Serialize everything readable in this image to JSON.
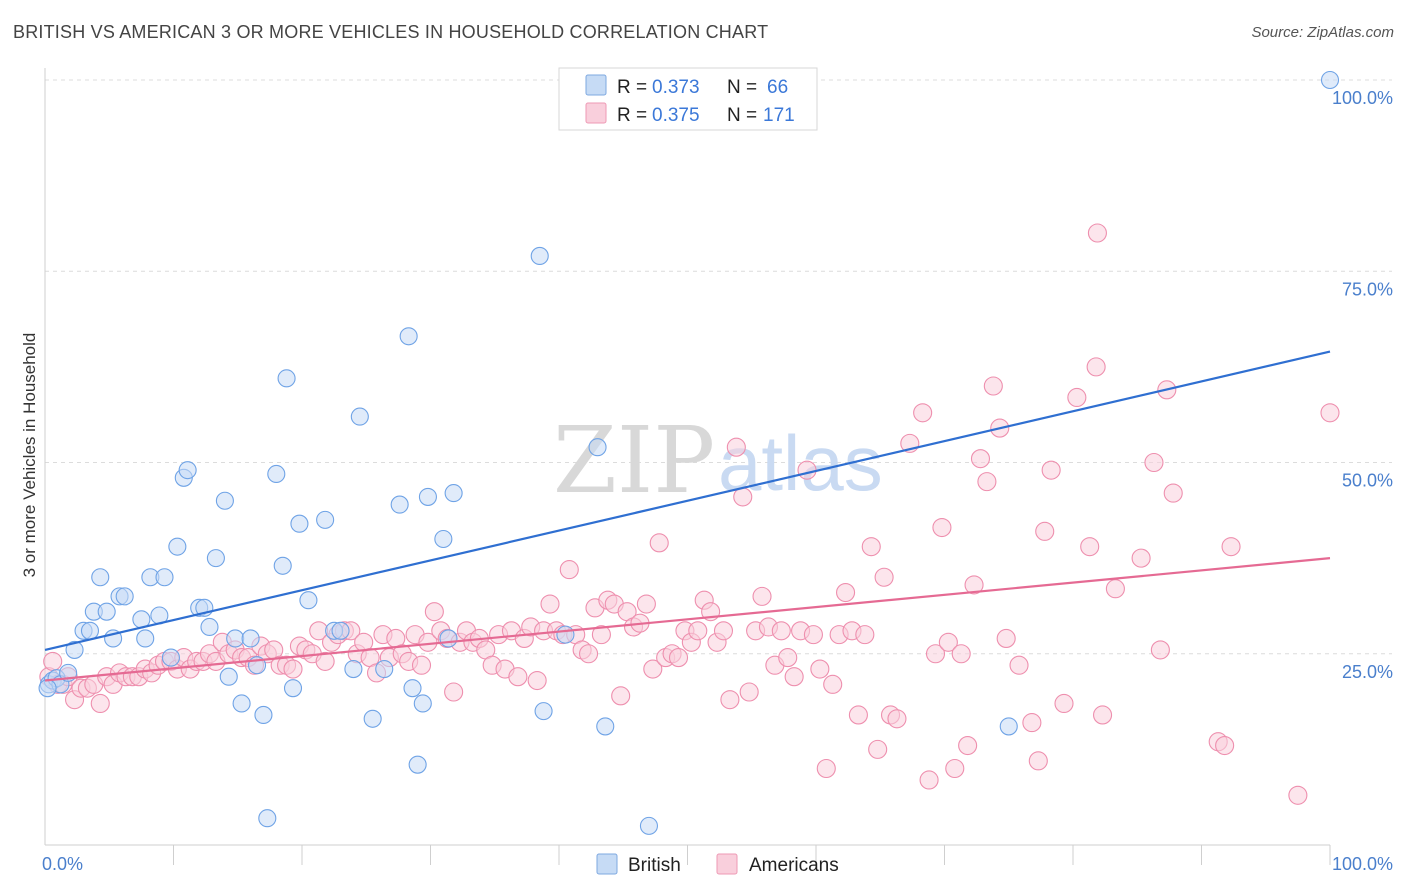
{
  "title": "BRITISH VS AMERICAN 3 OR MORE VEHICLES IN HOUSEHOLD CORRELATION CHART",
  "source": "Source: ZipAtlas.com",
  "watermark": {
    "zip": "ZIP",
    "atlas": "atlas"
  },
  "legend": {
    "rows": [
      {
        "r_label": "R = ",
        "r_value": "0.373",
        "n_label": "N = ",
        "n_value": "66",
        "color": "#aecbf0"
      },
      {
        "r_label": "R = ",
        "r_value": "0.375",
        "n_label": "N = ",
        "n_value": "171",
        "color": "#f7b8cb"
      }
    ]
  },
  "bottom_legend": [
    "British",
    "Americans"
  ],
  "chart_data": {
    "type": "scatter",
    "title": "BRITISH VS AMERICAN 3 OR MORE VEHICLES IN HOUSEHOLD CORRELATION CHART",
    "xlabel": "",
    "ylabel": "3 or more Vehicles in Household",
    "xlim": [
      0,
      100
    ],
    "ylim": [
      0,
      100
    ],
    "x_tick_labels": [
      "0.0%",
      "100.0%"
    ],
    "y_tick_labels": [
      "25.0%",
      "50.0%",
      "75.0%",
      "100.0%"
    ],
    "y_ticks": [
      25,
      50,
      75,
      100
    ],
    "grid": true,
    "legend_position": "top-center",
    "colors": {
      "british": "#6fa3e6",
      "british_fill": "#c6dbf5",
      "british_line": "#2f6fd1",
      "americans": "#ee8fae",
      "americans_fill": "#f9cfdc",
      "americans_line": "#e56a93"
    },
    "series": [
      {
        "name": "British",
        "R": 0.373,
        "N": 66,
        "trend": [
          [
            0,
            25.5
          ],
          [
            100,
            64.5
          ]
        ],
        "points": [
          [
            0.3,
            21
          ],
          [
            0.6,
            21.5
          ],
          [
            0.9,
            21.8
          ],
          [
            1.2,
            21
          ],
          [
            1.8,
            22.5
          ],
          [
            2.3,
            25.5
          ],
          [
            3,
            28
          ],
          [
            3.5,
            28
          ],
          [
            3.8,
            30.5
          ],
          [
            4.3,
            35
          ],
          [
            4.8,
            30.5
          ],
          [
            5.3,
            27
          ],
          [
            5.8,
            32.5
          ],
          [
            6.2,
            32.5
          ],
          [
            7.5,
            29.5
          ],
          [
            7.8,
            27
          ],
          [
            8.2,
            35
          ],
          [
            8.9,
            30
          ],
          [
            9.3,
            35
          ],
          [
            9.8,
            24.5
          ],
          [
            10.3,
            39
          ],
          [
            10.8,
            48
          ],
          [
            11.1,
            49
          ],
          [
            12,
            31
          ],
          [
            12.4,
            31
          ],
          [
            12.8,
            28.5
          ],
          [
            13.3,
            37.5
          ],
          [
            14,
            45
          ],
          [
            14.3,
            22
          ],
          [
            14.8,
            27
          ],
          [
            15.3,
            18.5
          ],
          [
            16,
            27
          ],
          [
            16.5,
            23.5
          ],
          [
            17,
            17
          ],
          [
            17.3,
            3.5
          ],
          [
            18,
            48.5
          ],
          [
            18.5,
            36.5
          ],
          [
            18.8,
            61
          ],
          [
            19.3,
            20.5
          ],
          [
            19.8,
            42
          ],
          [
            20.5,
            32
          ],
          [
            21.8,
            42.5
          ],
          [
            22.5,
            28
          ],
          [
            23,
            28
          ],
          [
            24,
            23
          ],
          [
            24.5,
            56
          ],
          [
            25.5,
            16.5
          ],
          [
            26.4,
            23
          ],
          [
            27.6,
            44.5
          ],
          [
            28.3,
            66.5
          ],
          [
            28.6,
            20.5
          ],
          [
            29,
            10.5
          ],
          [
            29.4,
            18.5
          ],
          [
            29.8,
            45.5
          ],
          [
            31,
            40
          ],
          [
            31.4,
            27
          ],
          [
            31.8,
            46
          ],
          [
            38.5,
            77
          ],
          [
            38.8,
            17.5
          ],
          [
            40.5,
            27.5
          ],
          [
            43,
            52
          ],
          [
            43.6,
            15.5
          ],
          [
            47,
            2.5
          ],
          [
            75,
            15.5
          ],
          [
            100,
            100
          ],
          [
            0.2,
            20.5
          ]
        ]
      },
      {
        "name": "Americans",
        "R": 0.375,
        "N": 171,
        "trend": [
          [
            0,
            21.5
          ],
          [
            100,
            37.5
          ]
        ],
        "points": [
          [
            0.3,
            22
          ],
          [
            0.6,
            24
          ],
          [
            1,
            21
          ],
          [
            1.4,
            21
          ],
          [
            1.8,
            22
          ],
          [
            2.3,
            19
          ],
          [
            2.8,
            20.5
          ],
          [
            3.3,
            20.5
          ],
          [
            3.8,
            21
          ],
          [
            4.3,
            18.5
          ],
          [
            4.8,
            22
          ],
          [
            5.3,
            21
          ],
          [
            5.8,
            22.5
          ],
          [
            6.3,
            22
          ],
          [
            6.8,
            22
          ],
          [
            7.3,
            22
          ],
          [
            7.8,
            23
          ],
          [
            8.3,
            22.5
          ],
          [
            8.8,
            23.5
          ],
          [
            9.3,
            24
          ],
          [
            9.8,
            24
          ],
          [
            10.3,
            23
          ],
          [
            10.8,
            24.5
          ],
          [
            11.3,
            23
          ],
          [
            11.8,
            24
          ],
          [
            12.3,
            24
          ],
          [
            12.8,
            25
          ],
          [
            13.3,
            24
          ],
          [
            13.8,
            26.5
          ],
          [
            14.3,
            25
          ],
          [
            14.8,
            25.5
          ],
          [
            15.3,
            24.5
          ],
          [
            15.8,
            24.5
          ],
          [
            16.3,
            23.5
          ],
          [
            16.8,
            26
          ],
          [
            17.3,
            25
          ],
          [
            17.8,
            25.5
          ],
          [
            18.3,
            23.5
          ],
          [
            18.8,
            23.5
          ],
          [
            19.3,
            23
          ],
          [
            19.8,
            26
          ],
          [
            20.3,
            25.5
          ],
          [
            20.8,
            25
          ],
          [
            21.3,
            28
          ],
          [
            21.8,
            24
          ],
          [
            22.3,
            26.5
          ],
          [
            22.8,
            27.5
          ],
          [
            23.3,
            28
          ],
          [
            23.8,
            28
          ],
          [
            24.3,
            25
          ],
          [
            24.8,
            26.5
          ],
          [
            25.3,
            24.5
          ],
          [
            25.8,
            22.5
          ],
          [
            26.3,
            27.5
          ],
          [
            26.8,
            24.5
          ],
          [
            27.3,
            27
          ],
          [
            27.8,
            25
          ],
          [
            28.3,
            24
          ],
          [
            28.8,
            27.5
          ],
          [
            29.3,
            23.5
          ],
          [
            29.8,
            26.5
          ],
          [
            30.3,
            30.5
          ],
          [
            30.8,
            28
          ],
          [
            31.3,
            27
          ],
          [
            31.8,
            20
          ],
          [
            32.3,
            26.5
          ],
          [
            32.8,
            28
          ],
          [
            33.3,
            26.5
          ],
          [
            33.8,
            27
          ],
          [
            34.3,
            25.5
          ],
          [
            34.8,
            23.5
          ],
          [
            35.3,
            27.5
          ],
          [
            35.8,
            23
          ],
          [
            36.3,
            28
          ],
          [
            36.8,
            22
          ],
          [
            37.3,
            27
          ],
          [
            37.8,
            28.5
          ],
          [
            38.3,
            21.5
          ],
          [
            38.8,
            28
          ],
          [
            39.3,
            31.5
          ],
          [
            39.8,
            28
          ],
          [
            40.3,
            27.5
          ],
          [
            40.8,
            36
          ],
          [
            41.3,
            27.5
          ],
          [
            41.8,
            25.5
          ],
          [
            42.3,
            25
          ],
          [
            42.8,
            31
          ],
          [
            43.3,
            27.5
          ],
          [
            43.8,
            32
          ],
          [
            44.3,
            31.5
          ],
          [
            44.8,
            19.5
          ],
          [
            45.3,
            30.5
          ],
          [
            45.8,
            28.5
          ],
          [
            46.3,
            29
          ],
          [
            46.8,
            31.5
          ],
          [
            47.3,
            23
          ],
          [
            47.8,
            39.5
          ],
          [
            48.3,
            24.5
          ],
          [
            48.8,
            25
          ],
          [
            49.3,
            24.5
          ],
          [
            49.8,
            28
          ],
          [
            50.3,
            26.5
          ],
          [
            50.8,
            28
          ],
          [
            51.3,
            32
          ],
          [
            51.8,
            30.5
          ],
          [
            52.3,
            26.5
          ],
          [
            52.8,
            28
          ],
          [
            53.3,
            19
          ],
          [
            53.8,
            52
          ],
          [
            54.3,
            45.5
          ],
          [
            54.8,
            20
          ],
          [
            55.3,
            28
          ],
          [
            55.8,
            32.5
          ],
          [
            56.3,
            28.5
          ],
          [
            56.8,
            23.5
          ],
          [
            57.3,
            28
          ],
          [
            57.8,
            24.5
          ],
          [
            58.3,
            22
          ],
          [
            58.8,
            28
          ],
          [
            59.3,
            49
          ],
          [
            59.8,
            27.5
          ],
          [
            60.3,
            23
          ],
          [
            60.8,
            10
          ],
          [
            61.3,
            21
          ],
          [
            61.8,
            27.5
          ],
          [
            62.3,
            33
          ],
          [
            62.8,
            28
          ],
          [
            63.3,
            17
          ],
          [
            63.8,
            27.5
          ],
          [
            64.3,
            39
          ],
          [
            64.8,
            12.5
          ],
          [
            65.3,
            35
          ],
          [
            65.8,
            17
          ],
          [
            66.3,
            16.5
          ],
          [
            67.3,
            52.5
          ],
          [
            68.3,
            56.5
          ],
          [
            68.8,
            8.5
          ],
          [
            69.3,
            25
          ],
          [
            69.8,
            41.5
          ],
          [
            70.3,
            26.5
          ],
          [
            70.8,
            10
          ],
          [
            71.3,
            25
          ],
          [
            71.8,
            13
          ],
          [
            72.3,
            34
          ],
          [
            72.8,
            50.5
          ],
          [
            73.3,
            47.5
          ],
          [
            73.8,
            60
          ],
          [
            74.3,
            54.5
          ],
          [
            74.8,
            27
          ],
          [
            75.8,
            23.5
          ],
          [
            76.8,
            16
          ],
          [
            77.3,
            11
          ],
          [
            77.8,
            41
          ],
          [
            78.3,
            49
          ],
          [
            79.3,
            18.5
          ],
          [
            80.3,
            58.5
          ],
          [
            81.3,
            39
          ],
          [
            81.8,
            62.5
          ],
          [
            81.9,
            80
          ],
          [
            82.3,
            17
          ],
          [
            83.3,
            33.5
          ],
          [
            85.3,
            37.5
          ],
          [
            86.3,
            50
          ],
          [
            86.8,
            25.5
          ],
          [
            87.3,
            59.5
          ],
          [
            87.8,
            46
          ],
          [
            91.3,
            13.5
          ],
          [
            91.8,
            13
          ],
          [
            92.3,
            39
          ],
          [
            97.5,
            6.5
          ],
          [
            100,
            56.5
          ]
        ]
      }
    ]
  }
}
